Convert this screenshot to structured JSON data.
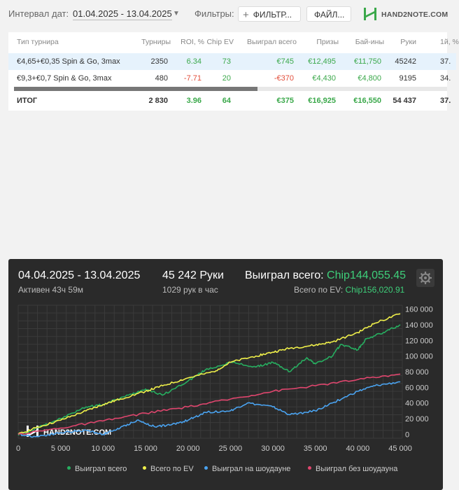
{
  "filters": {
    "interval_label": "Интервал дат:",
    "date_range": "01.04.2025 - 13.04.2025",
    "filters_label": "Фильтры:",
    "filter_button": "ФИЛЬТР...",
    "file_button": "ФАЙЛ..."
  },
  "logo_text": "HAND2NOTE.COM",
  "table": {
    "headers": [
      "Тип турнира",
      "Турниры",
      "ROI, %",
      "Chip EV",
      "Выиграл всего",
      "Призы",
      "Бай-ины",
      "Руки",
      "1й, %"
    ],
    "rows": [
      [
        "€4,65+€0,35 Spin & Go, 3max",
        "2350",
        "6.34",
        "73",
        "€745",
        "€12,495",
        "€11,750",
        "45242",
        "37."
      ],
      [
        "€9,3+€0,7 Spin & Go, 3max",
        "480",
        "-7.71",
        "20",
        "-€370",
        "€4,430",
        "€4,800",
        "9195",
        "34."
      ]
    ],
    "total": [
      "ИТОГ",
      "2 830",
      "3.96",
      "64",
      "€375",
      "€16,925",
      "€16,550",
      "54 437",
      "37."
    ]
  },
  "summary": {
    "date_range": "04.04.2025 - 13.04.2025",
    "active": "Активен 43ч 59м",
    "hands": "45 242 Руки",
    "hands_rate": "1029 рук в час",
    "won_label": "Выиграл всего:",
    "won_value": "Chip144,055.45",
    "ev_label": "Всего по EV:",
    "ev_value": "Chip156,020.91"
  },
  "chart_data": {
    "type": "line",
    "x_ticks": [
      "0",
      "5 000",
      "10 000",
      "15 000",
      "20 000",
      "25 000",
      "30 000",
      "35 000",
      "40 000",
      "45 000"
    ],
    "y_ticks": [
      "0",
      "20 000",
      "40 000",
      "60 000",
      "80 000",
      "100 000",
      "120 000",
      "140 000",
      "160 000"
    ],
    "xlim": [
      0,
      45242
    ],
    "ylim": [
      -5000,
      165000
    ],
    "grid": true,
    "legend_position": "bottom",
    "watermark": "HAND2NOTE.COM",
    "series": [
      {
        "name": "Выиграл всего",
        "color": "#27ae60",
        "x": [
          0,
          1000,
          3000,
          5000,
          8000,
          10000,
          13000,
          15000,
          17000,
          20000,
          22000,
          25000,
          28000,
          30000,
          32000,
          34000,
          35000,
          37000,
          38000,
          40000,
          41000,
          43000,
          45000
        ],
        "y": [
          0,
          2000,
          12000,
          20000,
          35000,
          38000,
          50000,
          58000,
          50000,
          68000,
          82000,
          92000,
          86000,
          92000,
          80000,
          98000,
          90000,
          100000,
          115000,
          108000,
          122000,
          130000,
          140000
        ]
      },
      {
        "name": "Всего по EV",
        "color": "#f0f04a",
        "x": [
          0,
          2000,
          5000,
          8000,
          10000,
          12000,
          15000,
          17000,
          20000,
          23000,
          25000,
          28000,
          30000,
          32000,
          35000,
          37000,
          40000,
          42000,
          45000
        ],
        "y": [
          0,
          8000,
          18000,
          30000,
          38000,
          45000,
          55000,
          62000,
          72000,
          80000,
          92000,
          100000,
          105000,
          110000,
          114000,
          118000,
          130000,
          142000,
          154000
        ]
      },
      {
        "name": "Выиграл на шоудауне",
        "color": "#4aa3f0",
        "x": [
          0,
          2000,
          5000,
          8000,
          10000,
          12000,
          14000,
          16000,
          18000,
          20000,
          22000,
          25000,
          27000,
          30000,
          32000,
          35000,
          37000,
          40000,
          42000,
          45000
        ],
        "y": [
          0,
          -3000,
          2000,
          5000,
          0,
          8000,
          18000,
          10000,
          12000,
          18000,
          28000,
          30000,
          40000,
          35000,
          25000,
          30000,
          40000,
          55000,
          62000,
          67000
        ]
      },
      {
        "name": "Выиграл без шоудауна",
        "color": "#e0466e",
        "x": [
          0,
          5000,
          10000,
          15000,
          20000,
          25000,
          30000,
          35000,
          40000,
          45000
        ],
        "y": [
          0,
          8000,
          17000,
          27000,
          35000,
          45000,
          55000,
          62000,
          70000,
          77000
        ]
      }
    ]
  }
}
